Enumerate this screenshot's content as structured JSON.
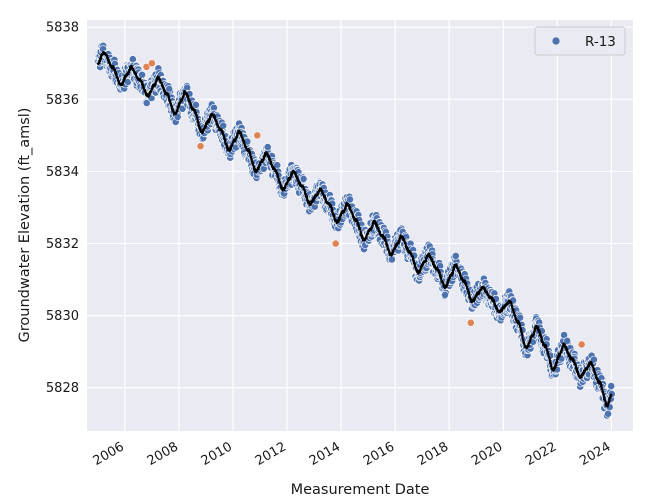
{
  "chart_data": {
    "type": "scatter",
    "xlabel": "Measurement Date",
    "ylabel": "Groundwater Elevation (ft_amsl)",
    "x_ticks": [
      "2006",
      "2008",
      "2010",
      "2012",
      "2014",
      "2016",
      "2018",
      "2020",
      "2022",
      "2024"
    ],
    "y_ticks": [
      "5828",
      "5830",
      "5832",
      "5834",
      "5836",
      "5838"
    ],
    "xlim": [
      2004.6,
      2024.8
    ],
    "ylim": [
      5826.8,
      5838.2
    ],
    "grid": true,
    "legend": {
      "position": "top-right",
      "entries": [
        {
          "name": "R-13",
          "color": "#4c72b0"
        }
      ]
    },
    "colors": {
      "background": "#eaeaf2",
      "grid": "#ffffff",
      "measured": "#4c72b0",
      "outlier": "#dd8452",
      "smoothed": "#000000"
    },
    "series": [
      {
        "name": "R-13",
        "kind": "seasonal_scatter",
        "color": "#4c72b0",
        "x_range": [
          2005.0,
          2024.0
        ],
        "yearly_cycles": [
          {
            "year": 2005,
            "peak": 5837.3,
            "trough": 5836.4
          },
          {
            "year": 2006,
            "peak": 5836.9,
            "trough": 5836.1
          },
          {
            "year": 2007,
            "peak": 5836.6,
            "trough": 5835.6
          },
          {
            "year": 2008,
            "peak": 5836.2,
            "trough": 5835.1
          },
          {
            "year": 2009,
            "peak": 5835.6,
            "trough": 5834.6
          },
          {
            "year": 2010,
            "peak": 5835.1,
            "trough": 5834.0
          },
          {
            "year": 2011,
            "peak": 5834.5,
            "trough": 5833.5
          },
          {
            "year": 2012,
            "peak": 5834.0,
            "trough": 5833.1
          },
          {
            "year": 2013,
            "peak": 5833.5,
            "trough": 5832.6
          },
          {
            "year": 2014,
            "peak": 5833.1,
            "trough": 5832.1
          },
          {
            "year": 2015,
            "peak": 5832.6,
            "trough": 5831.7
          },
          {
            "year": 2016,
            "peak": 5832.2,
            "trough": 5831.2
          },
          {
            "year": 2017,
            "peak": 5831.7,
            "trough": 5830.8
          },
          {
            "year": 2018,
            "peak": 5831.4,
            "trough": 5830.4
          },
          {
            "year": 2019,
            "peak": 5830.8,
            "trough": 5830.1
          },
          {
            "year": 2020,
            "peak": 5830.4,
            "trough": 5829.1
          },
          {
            "year": 2021,
            "peak": 5829.7,
            "trough": 5828.5
          },
          {
            "year": 2022,
            "peak": 5829.2,
            "trough": 5828.3
          },
          {
            "year": 2023,
            "peak": 5828.7,
            "trough": 5827.5
          }
        ],
        "end": {
          "x": 2024.0,
          "y": 5827.8
        }
      },
      {
        "name": "outliers",
        "kind": "points",
        "color": "#dd8452",
        "points": [
          {
            "x": 2006.8,
            "y": 5836.9
          },
          {
            "x": 2007.0,
            "y": 5837.0
          },
          {
            "x": 2008.8,
            "y": 5834.7
          },
          {
            "x": 2010.9,
            "y": 5835.0
          },
          {
            "x": 2013.8,
            "y": 5832.0
          },
          {
            "x": 2018.8,
            "y": 5829.8
          },
          {
            "x": 2022.9,
            "y": 5829.2
          }
        ]
      }
    ]
  }
}
